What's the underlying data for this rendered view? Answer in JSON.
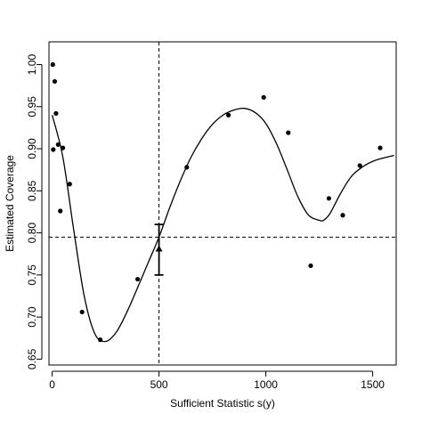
{
  "chart_data": {
    "type": "scatter",
    "xlabel": "Sufficient Statistic s(y)",
    "ylabel": "Estimated Coverage",
    "xlim": [
      -15,
      1610
    ],
    "ylim": [
      0.643,
      1.027
    ],
    "x_ticks": [
      0,
      500,
      1000,
      1500
    ],
    "y_ticks": [
      0.65,
      0.7,
      0.75,
      0.8,
      0.85,
      0.9,
      0.95,
      1.0
    ],
    "x_tick_labels": [
      "0",
      "500",
      "1000",
      "1500"
    ],
    "y_tick_labels": [
      "0.65",
      "0.70",
      "0.75",
      "0.80",
      "0.85",
      "0.90",
      "0.95",
      "1.00"
    ],
    "points": [
      {
        "x": 3,
        "y": 1.0
      },
      {
        "x": 12,
        "y": 0.98
      },
      {
        "x": 18,
        "y": 0.942
      },
      {
        "x": 5,
        "y": 0.899
      },
      {
        "x": 28,
        "y": 0.905
      },
      {
        "x": 50,
        "y": 0.901
      },
      {
        "x": 38,
        "y": 0.826
      },
      {
        "x": 82,
        "y": 0.858
      },
      {
        "x": 140,
        "y": 0.706
      },
      {
        "x": 225,
        "y": 0.673
      },
      {
        "x": 400,
        "y": 0.745
      },
      {
        "x": 630,
        "y": 0.878
      },
      {
        "x": 825,
        "y": 0.94
      },
      {
        "x": 990,
        "y": 0.961
      },
      {
        "x": 1105,
        "y": 0.919
      },
      {
        "x": 1210,
        "y": 0.761
      },
      {
        "x": 1295,
        "y": 0.841
      },
      {
        "x": 1360,
        "y": 0.821
      },
      {
        "x": 1440,
        "y": 0.88
      },
      {
        "x": 1535,
        "y": 0.901
      }
    ],
    "smooth_curve": {
      "x": [
        0,
        50,
        100,
        150,
        200,
        250,
        300,
        350,
        400,
        450,
        500,
        550,
        600,
        650,
        700,
        750,
        800,
        850,
        900,
        950,
        1000,
        1050,
        1100,
        1150,
        1200,
        1250,
        1270,
        1300,
        1350,
        1400,
        1450,
        1500,
        1550,
        1600
      ],
      "y": [
        0.94,
        0.89,
        0.805,
        0.725,
        0.68,
        0.671,
        0.682,
        0.706,
        0.735,
        0.765,
        0.795,
        0.83,
        0.862,
        0.89,
        0.912,
        0.929,
        0.94,
        0.946,
        0.948,
        0.943,
        0.93,
        0.906,
        0.875,
        0.843,
        0.821,
        0.815,
        0.815,
        0.823,
        0.847,
        0.867,
        0.878,
        0.885,
        0.889,
        0.892
      ]
    },
    "reference_lines": {
      "vertical_x": 500,
      "horizontal_y": 0.795
    },
    "error_bar": {
      "x": 500,
      "y": 0.781,
      "low": 0.75,
      "high": 0.81
    },
    "grid": false,
    "legend": "none"
  }
}
